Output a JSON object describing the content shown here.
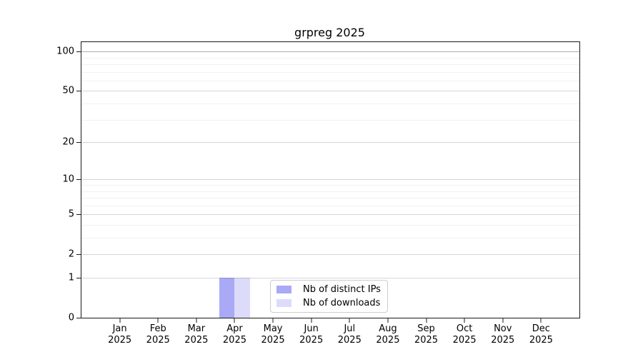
{
  "chart_data": {
    "type": "bar",
    "title": "grpreg 2025",
    "categories": [
      "Jan",
      "Feb",
      "Mar",
      "Apr",
      "May",
      "Jun",
      "Jul",
      "Aug",
      "Sep",
      "Oct",
      "Nov",
      "Dec"
    ],
    "tick_year": "2025",
    "series": [
      {
        "name": "Nb of distinct IPs",
        "color": "#a9a9f5",
        "values": [
          0,
          0,
          0,
          1,
          0,
          0,
          0,
          0,
          0,
          0,
          0,
          0
        ]
      },
      {
        "name": "Nb of downloads",
        "color": "#dcdcfa",
        "values": [
          0,
          0,
          0,
          1,
          0,
          0,
          0,
          0,
          0,
          0,
          0,
          0
        ]
      }
    ],
    "yscale": "log1p",
    "ylim": [
      0,
      118
    ],
    "yticks": [
      0,
      1,
      2,
      5,
      10,
      20,
      50,
      100
    ],
    "minor_yticks": [
      3,
      4,
      6,
      7,
      8,
      9,
      30,
      40,
      60,
      70,
      80,
      90
    ],
    "emphasized_gridline": 100,
    "grid": true,
    "legend_position": "lower-center",
    "bar_group_fraction": 0.8
  }
}
